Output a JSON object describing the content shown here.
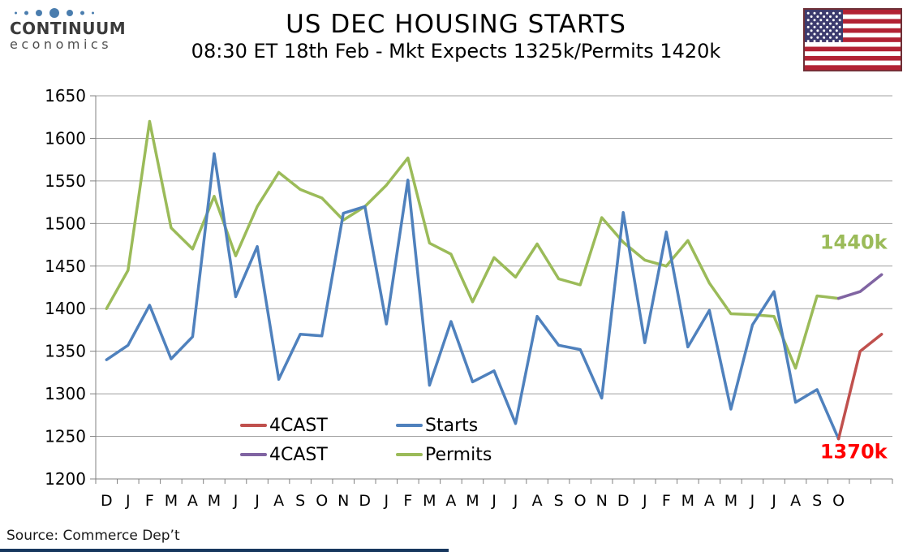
{
  "header": {
    "logo": {
      "line1": "CONTINUUM",
      "line2": "economics",
      "dot_color": "#4a7dae"
    },
    "title": "US DEC HOUSING STARTS",
    "subtitle": "08:30 ET 18th Feb - Mkt Expects 1325k/Permits 1420k",
    "flag": {
      "red": "#B22234",
      "blue": "#3C3B6E",
      "white": "#FFFFFF",
      "border": "#6e3037"
    }
  },
  "source_note": "Source: Commerce Dep’t",
  "chart_data": {
    "type": "line",
    "title": "US DEC HOUSING STARTS",
    "subtitle": "08:30 ET 18th Feb - Mkt Expects 1325k/Permits 1420k",
    "ylim": [
      1200,
      1650
    ],
    "y_step": 50,
    "grid": true,
    "x_labels": [
      "D",
      "J",
      "F",
      "M",
      "A",
      "M",
      "J",
      "J",
      "A",
      "S",
      "O",
      "N",
      "D",
      "J",
      "F",
      "M",
      "A",
      "M",
      "J",
      "J",
      "A",
      "S",
      "O",
      "N",
      "D",
      "J",
      "F",
      "M",
      "A",
      "M",
      "J",
      "J",
      "A",
      "S",
      "O",
      "",
      ""
    ],
    "series": [
      {
        "key": "permits",
        "name": "Permits",
        "color": "#9BBB59",
        "start_index": 0,
        "values": [
          1400,
          1445,
          1620,
          1495,
          1470,
          1532,
          1462,
          1520,
          1560,
          1540,
          1530,
          1504,
          1520,
          1545,
          1577,
          1477,
          1464,
          1408,
          1460,
          1437,
          1476,
          1435,
          1428,
          1507,
          1478,
          1457,
          1450,
          1480,
          1430,
          1394,
          1393,
          1391,
          1330,
          1415,
          1412
        ]
      },
      {
        "key": "starts",
        "name": "Starts",
        "color": "#4F81BD",
        "start_index": 0,
        "values": [
          1340,
          1357,
          1404,
          1341,
          1367,
          1582,
          1414,
          1473,
          1317,
          1370,
          1368,
          1512,
          1520,
          1382,
          1551,
          1310,
          1385,
          1314,
          1327,
          1265,
          1391,
          1357,
          1352,
          1295,
          1513,
          1360,
          1490,
          1355,
          1398,
          1282,
          1381,
          1420,
          1290,
          1305,
          1247
        ]
      },
      {
        "key": "forecast-permits",
        "name": "4CAST",
        "color": "#8064A2",
        "start_index": 34,
        "values": [
          1412,
          1420,
          1440
        ]
      },
      {
        "key": "forecast-starts",
        "name": "4CAST",
        "color": "#C0504D",
        "start_index": 34,
        "values": [
          1247,
          1350,
          1370
        ]
      }
    ],
    "legend": {
      "position": "inside-bottom-left",
      "items": [
        {
          "label": "4CAST",
          "color": "#C0504D"
        },
        {
          "label": "Starts",
          "color": "#4F81BD"
        },
        {
          "label": "4CAST",
          "color": "#8064A2"
        },
        {
          "label": "Permits",
          "color": "#9BBB59"
        }
      ]
    },
    "annotations": [
      {
        "text": "1440k",
        "color": "#9BBB59",
        "x_slot": 34.7,
        "value": 1478
      },
      {
        "text": "1370k",
        "color": "#FF0000",
        "x_slot": 34.7,
        "value": 1232
      }
    ]
  }
}
